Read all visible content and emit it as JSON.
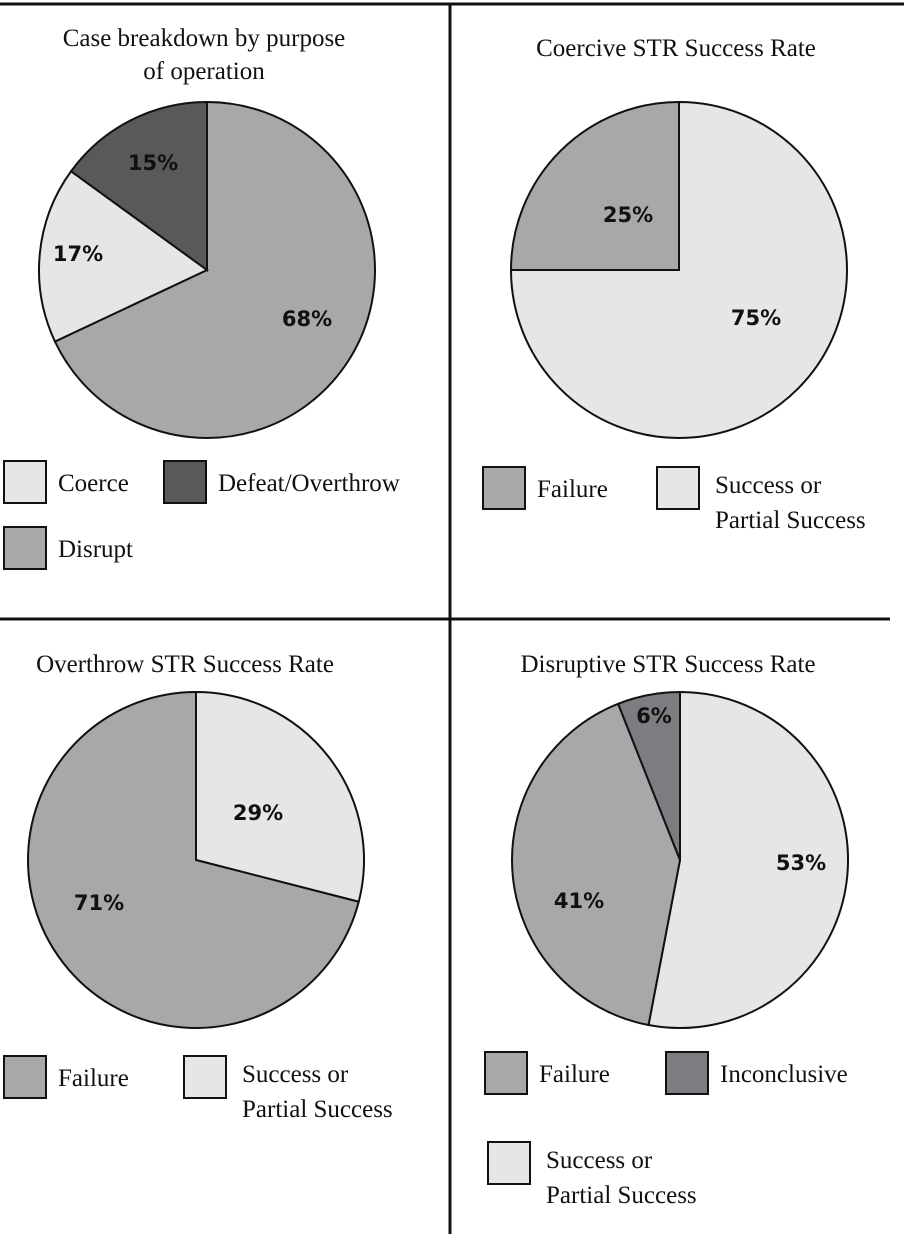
{
  "colors": {
    "light": "#e6e6e7",
    "mid": "#a7a8aa",
    "midDark": "#7c7d80",
    "dark": "#58595b"
  },
  "chart_data": [
    {
      "type": "pie",
      "title": "Case breakdown by purpose of operation",
      "series": [
        {
          "name": "Disrupt",
          "value": 68,
          "label": "68%",
          "color": "#a7a8aa"
        },
        {
          "name": "Coerce",
          "value": 17,
          "label": "17%",
          "color": "#e6e6e7"
        },
        {
          "name": "Defeat/Overthrow",
          "value": 15,
          "label": "15%",
          "color": "#58595b"
        }
      ],
      "legend": [
        {
          "name": "Coerce",
          "color": "#e6e6e7"
        },
        {
          "name": "Defeat/Overthrow",
          "color": "#58595b"
        },
        {
          "name": "Disrupt",
          "color": "#a7a8aa"
        }
      ]
    },
    {
      "type": "pie",
      "title": "Coercive STR Success Rate",
      "series": [
        {
          "name": "Success or Partial Success",
          "value": 75,
          "label": "75%",
          "color": "#e6e6e7"
        },
        {
          "name": "Failure",
          "value": 25,
          "label": "25%",
          "color": "#a7a8aa"
        }
      ],
      "legend": [
        {
          "name": "Failure",
          "color": "#a7a8aa"
        },
        {
          "name": "Success or Partial Success",
          "color": "#e6e6e7"
        }
      ]
    },
    {
      "type": "pie",
      "title": "Overthrow STR Success Rate",
      "series": [
        {
          "name": "Success or Partial Success",
          "value": 29,
          "label": "29%",
          "color": "#e6e6e7"
        },
        {
          "name": "Failure",
          "value": 71,
          "label": "71%",
          "color": "#a7a8aa"
        }
      ],
      "legend": [
        {
          "name": "Failure",
          "color": "#a7a8aa"
        },
        {
          "name": "Success or Partial Success",
          "color": "#e6e6e7"
        }
      ]
    },
    {
      "type": "pie",
      "title": "Disruptive STR Success Rate",
      "series": [
        {
          "name": "Success or Partial Success",
          "value": 53,
          "label": "53%",
          "color": "#e6e6e7"
        },
        {
          "name": "Failure",
          "value": 41,
          "label": "41%",
          "color": "#a7a8aa"
        },
        {
          "name": "Inconclusive",
          "value": 6,
          "label": "6%",
          "color": "#7c7d80"
        }
      ],
      "legend": [
        {
          "name": "Failure",
          "color": "#a7a8aa"
        },
        {
          "name": "Inconclusive",
          "color": "#7c7d80"
        },
        {
          "name": "Success or Partial Success",
          "color": "#e6e6e7"
        }
      ]
    }
  ]
}
